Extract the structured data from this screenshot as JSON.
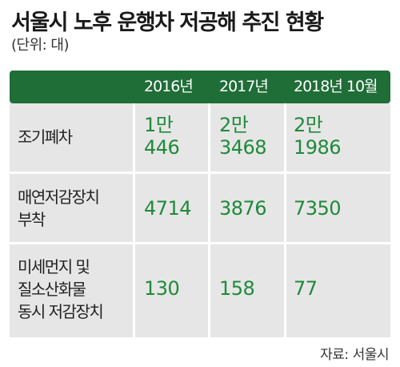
{
  "title": "서울시 노후 운행차 저공해 추진 현황",
  "unit": "(단위:  대)",
  "columns": [
    "2016년",
    "2017년",
    "2018년 10월"
  ],
  "rows": [
    {
      "label": [
        "조기폐차"
      ],
      "values": [
        [
          "1만",
          "446"
        ],
        [
          "2만",
          "3468"
        ],
        [
          "2만",
          "1986"
        ]
      ]
    },
    {
      "label": [
        "매연저감장치",
        "부착"
      ],
      "values": [
        [
          "4714"
        ],
        [
          "3876"
        ],
        [
          "7350"
        ]
      ]
    },
    {
      "label": [
        "미세먼지 및",
        "질소산화물",
        "동시 저감장치"
      ],
      "values": [
        [
          "130"
        ],
        [
          "158"
        ],
        [
          "77"
        ]
      ]
    }
  ],
  "source": "자료: 서울시",
  "colors": {
    "header_bg": "#1f6d37",
    "value_text": "#1f8a3a",
    "cell_bg": "#e6e6e6"
  }
}
